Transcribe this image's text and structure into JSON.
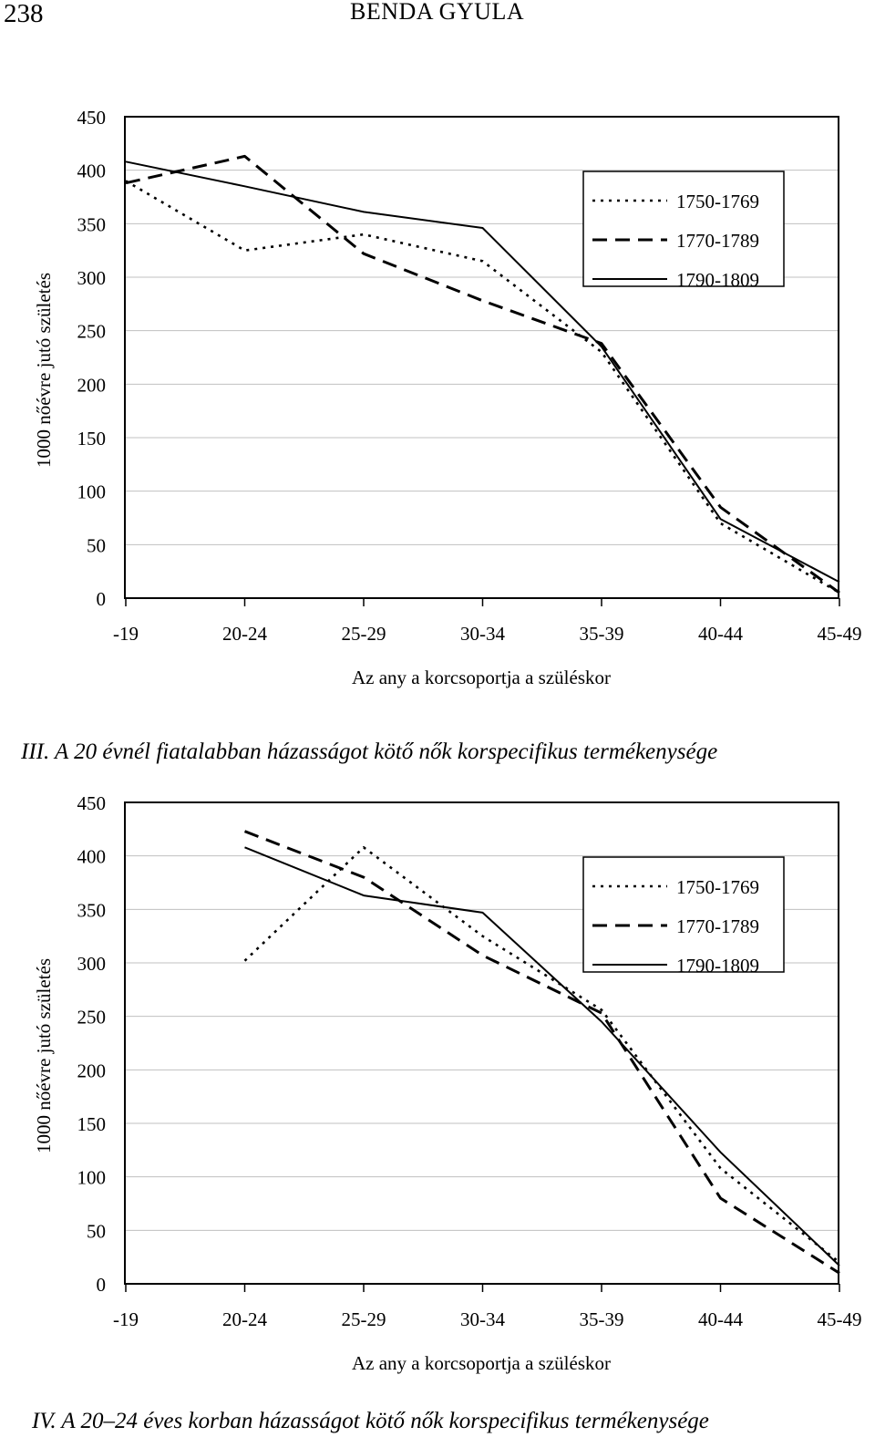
{
  "header": {
    "page_number": "238",
    "running_head": "BENDA GYULA"
  },
  "captions": [
    "III. A 20 évnél fiatalabban házasságot kötő nők korspecifikus termékenysége",
    "IV. A 20–24 éves korban házasságot kötő nők korspecifikus termékenysége"
  ],
  "colors": {
    "line": "#000000",
    "grid": "#c0c0c0",
    "background": "#ffffff"
  },
  "chart_data": [
    {
      "type": "line",
      "title": "",
      "xlabel": "Az any a korcsoportja a szüléskor",
      "ylabel": "1000 nőévre jutó születés",
      "categories": [
        "-19",
        "20-24",
        "25-29",
        "30-34",
        "35-39",
        "40-44",
        "45-49"
      ],
      "ylim": [
        0,
        450
      ],
      "yticks": [
        0,
        50,
        100,
        150,
        200,
        250,
        300,
        350,
        400,
        450
      ],
      "grid": true,
      "legend": "top-right",
      "series": [
        {
          "name": "1750-1769",
          "style": "dotted",
          "values": [
            390,
            325,
            340,
            315,
            230,
            70,
            5
          ]
        },
        {
          "name": "1770-1789",
          "style": "dashed",
          "values": [
            388,
            413,
            322,
            278,
            238,
            85,
            5
          ]
        },
        {
          "name": "1790-1809",
          "style": "solid",
          "values": [
            408,
            385,
            361,
            346,
            235,
            74,
            15
          ]
        }
      ]
    },
    {
      "type": "line",
      "title": "",
      "xlabel": "Az any a korcsoportja a szüléskor",
      "ylabel": "1000 nőévre jutó születés",
      "categories": [
        "-19",
        "20-24",
        "25-29",
        "30-34",
        "35-39",
        "40-44",
        "45-49"
      ],
      "ylim": [
        0,
        450
      ],
      "yticks": [
        0,
        50,
        100,
        150,
        200,
        250,
        300,
        350,
        400,
        450
      ],
      "grid": true,
      "legend": "top-right",
      "series": [
        {
          "name": "1750-1769",
          "style": "dotted",
          "values": [
            null,
            302,
            408,
            325,
            256,
            108,
            20
          ]
        },
        {
          "name": "1770-1789",
          "style": "dashed",
          "values": [
            null,
            423,
            380,
            307,
            253,
            80,
            10
          ]
        },
        {
          "name": "1790-1809",
          "style": "solid",
          "values": [
            null,
            408,
            363,
            347,
            245,
            123,
            17
          ]
        }
      ]
    }
  ]
}
